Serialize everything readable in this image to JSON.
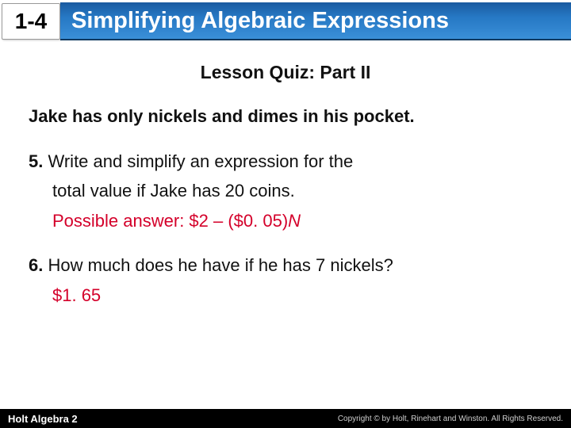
{
  "header": {
    "section_number": "1-4",
    "title": "Simplifying Algebraic Expressions",
    "section_bg": "#ffffff",
    "title_gradient_top": "#1a5aa0",
    "title_gradient_bottom": "#3a8fd8",
    "title_color": "#ffffff"
  },
  "quiz": {
    "heading": "Lesson Quiz: Part II",
    "intro": "Jake has only nickels and dimes in his pocket.",
    "q5": {
      "number": "5.",
      "line1": "Write and simplify an expression for the",
      "line2": "total value if Jake has 20 coins.",
      "answer_prefix": "Possible answer: $2 – ($0. 05)",
      "answer_var": "N"
    },
    "q6": {
      "number": "6.",
      "text": "How much does he have if he has 7 nickels?",
      "answer": "$1. 65"
    }
  },
  "footer": {
    "left": "Holt Algebra 2",
    "right": "Copyright © by Holt, Rinehart and Winston. All Rights Reserved."
  },
  "colors": {
    "answer_color": "#d4002a",
    "text_color": "#111111",
    "footer_bg": "#000000",
    "footer_text": "#ffffff"
  }
}
